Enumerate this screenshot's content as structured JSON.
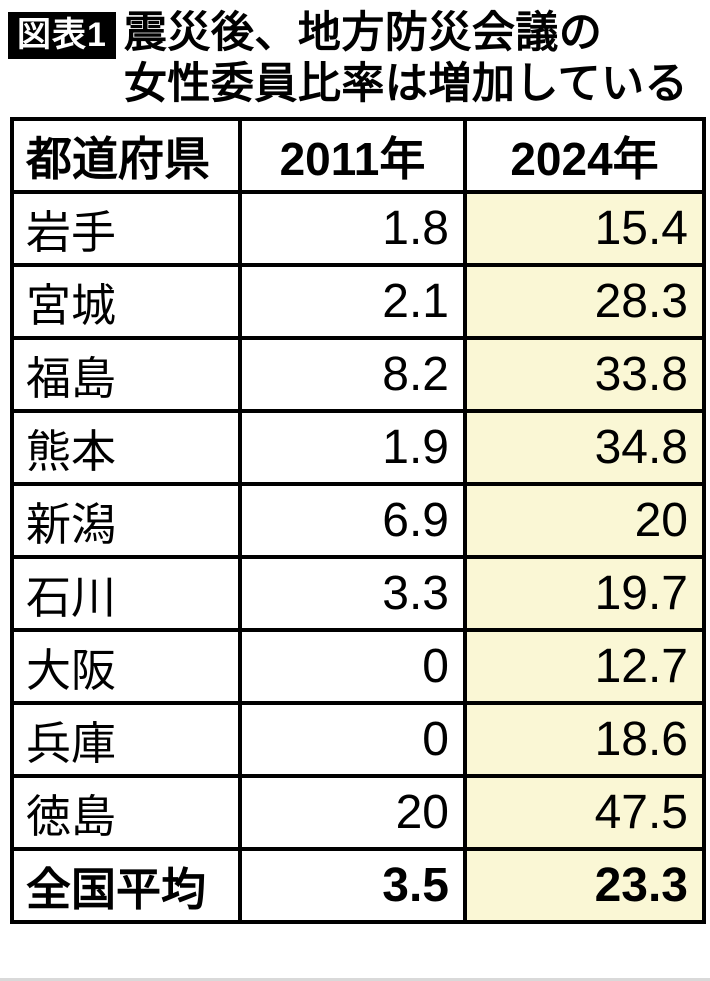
{
  "header": {
    "badge": "図表1",
    "title_line1": "震災後、地方防災会議の",
    "title_line2": "女性委員比率は増加している"
  },
  "chart_data": {
    "type": "table",
    "title": "震災後、地方防災会議の女性委員比率は増加している",
    "columns": [
      "都道府県",
      "2011年",
      "2024年"
    ],
    "rows": [
      [
        "岩手",
        "1.8",
        "15.4"
      ],
      [
        "宮城",
        "2.1",
        "28.3"
      ],
      [
        "福島",
        "8.2",
        "33.8"
      ],
      [
        "熊本",
        "1.9",
        "34.8"
      ],
      [
        "新潟",
        "6.9",
        "20"
      ],
      [
        "石川",
        "3.3",
        "19.7"
      ],
      [
        "大阪",
        "0",
        "12.7"
      ],
      [
        "兵庫",
        "0",
        "18.6"
      ],
      [
        "徳島",
        "20",
        "47.5"
      ]
    ],
    "summary_row": [
      "全国平均",
      "3.5",
      "23.3"
    ],
    "highlight_column": "2024年",
    "highlight_color": "#FAF7D5",
    "border_color": "#000000",
    "badge_background": "#000000",
    "badge_text_color": "#ffffff"
  }
}
